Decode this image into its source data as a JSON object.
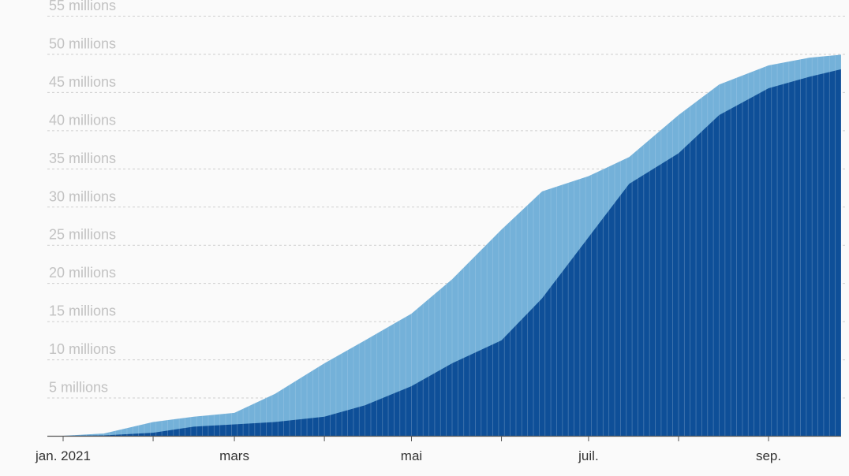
{
  "chart_data": {
    "type": "area",
    "x": [
      "2021-01-01",
      "2021-01-15",
      "2021-02-01",
      "2021-02-15",
      "2021-03-01",
      "2021-03-15",
      "2021-04-01",
      "2021-04-15",
      "2021-05-01",
      "2021-05-15",
      "2021-06-01",
      "2021-06-15",
      "2021-07-01",
      "2021-07-15",
      "2021-08-01",
      "2021-08-15",
      "2021-09-01",
      "2021-09-15",
      "2021-09-26"
    ],
    "series": [
      {
        "color": "#74b1d9",
        "values": [
          0,
          0.3,
          1.8,
          2.5,
          3.0,
          5.5,
          9.5,
          12.5,
          16.0,
          20.5,
          27.0,
          32.0,
          34.0,
          36.5,
          42.0,
          46.0,
          48.5,
          49.5,
          49.9
        ]
      },
      {
        "color": "#0e4f98",
        "values": [
          0,
          0.05,
          0.4,
          1.2,
          1.5,
          1.8,
          2.5,
          4.0,
          6.5,
          9.5,
          12.5,
          18.0,
          26.0,
          33.0,
          37.0,
          42.0,
          45.5,
          47.0,
          48.0
        ]
      }
    ],
    "ylim": [
      0,
      55
    ],
    "y_ticks": [
      {
        "value": 5,
        "label": "5 millions"
      },
      {
        "value": 10,
        "label": "10 millions"
      },
      {
        "value": 15,
        "label": "15 millions"
      },
      {
        "value": 20,
        "label": "20 millions"
      },
      {
        "value": 25,
        "label": "25 millions"
      },
      {
        "value": 30,
        "label": "30 millions"
      },
      {
        "value": 35,
        "label": "35 millions"
      },
      {
        "value": 40,
        "label": "40 millions"
      },
      {
        "value": 45,
        "label": "45 millions"
      },
      {
        "value": 50,
        "label": "50 millions"
      },
      {
        "value": 55,
        "label": "55 millions"
      }
    ],
    "x_ticks": [
      {
        "value": "2021-01-01",
        "label": "jan. 2021"
      },
      {
        "value": "2021-03-01",
        "label": "mars"
      },
      {
        "value": "2021-05-01",
        "label": "mai"
      },
      {
        "value": "2021-07-01",
        "label": "juil."
      },
      {
        "value": "2021-09-01",
        "label": "sep."
      }
    ],
    "x_minor_ticks": [
      "2021-02-01",
      "2021-04-01",
      "2021-06-01",
      "2021-08-01"
    ],
    "grid": true
  }
}
